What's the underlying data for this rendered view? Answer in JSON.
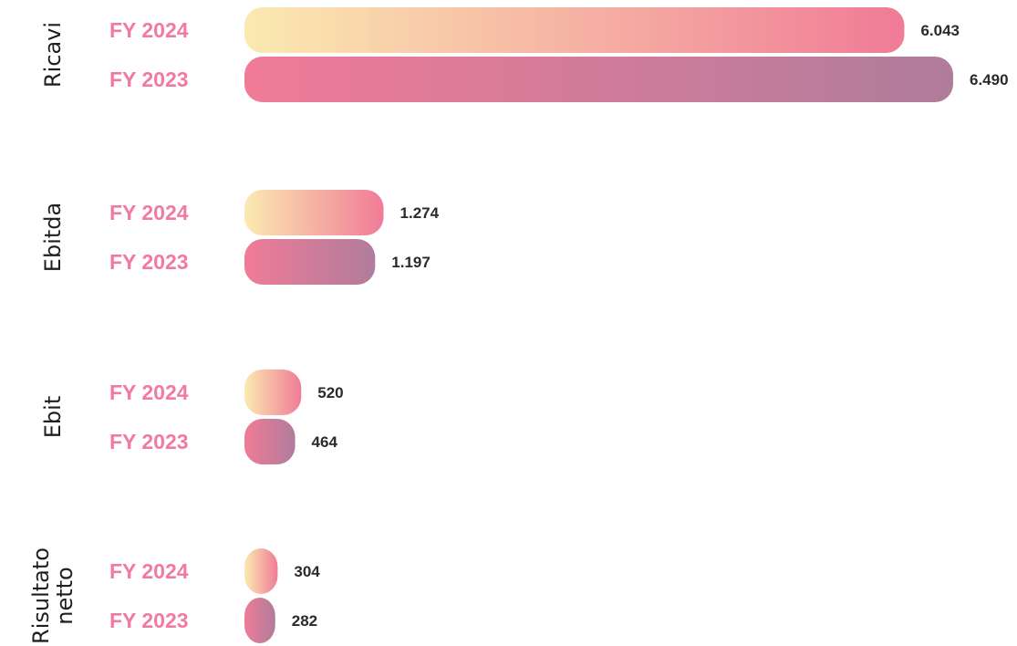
{
  "chart_data": {
    "type": "bar",
    "orientation": "horizontal",
    "groups": [
      {
        "label": [
          "Ricavi"
        ],
        "bars": [
          {
            "year": "FY 2024",
            "value": 6043,
            "display": "6.043"
          },
          {
            "year": "FY 2023",
            "value": 6490,
            "display": "6.490"
          }
        ]
      },
      {
        "label": [
          "Ebitda"
        ],
        "bars": [
          {
            "year": "FY 2024",
            "value": 1274,
            "display": "1.274"
          },
          {
            "year": "FY 2023",
            "value": 1197,
            "display": "1.197"
          }
        ]
      },
      {
        "label": [
          "Ebit"
        ],
        "bars": [
          {
            "year": "FY 2024",
            "value": 520,
            "display": "520"
          },
          {
            "year": "FY 2023",
            "value": 464,
            "display": "464"
          }
        ]
      },
      {
        "label": [
          "Risultato",
          "netto"
        ],
        "bars": [
          {
            "year": "FY 2024",
            "value": 304,
            "display": "304"
          },
          {
            "year": "FY 2023",
            "value": 282,
            "display": "282"
          }
        ]
      }
    ],
    "grid": false,
    "legend": "none",
    "colors": {
      "fy2024_start": "#fbeab0",
      "fy2024_end": "#f07b97",
      "fy2023_start": "#f07b97",
      "fy2023_end": "#b07c9c",
      "year_label": "#f07aa3",
      "value_label": "#2a2a2a",
      "group_label": "#1f1f1f"
    }
  }
}
